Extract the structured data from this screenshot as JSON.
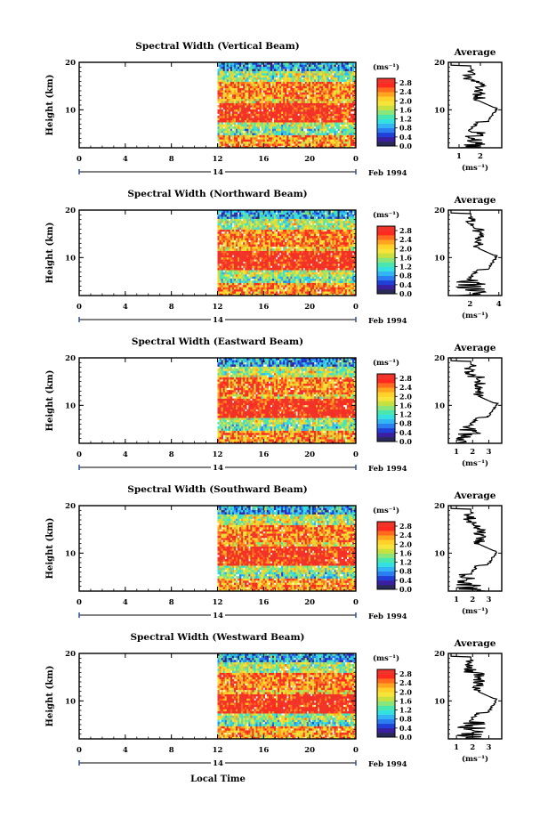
{
  "chart_data": [
    {
      "type": "heatmap",
      "title": "Spectral Width (Vertical Beam)",
      "ylabel": "Height (km)",
      "x_ticks": [
        "0",
        "4",
        "8",
        "12",
        "16",
        "20",
        "0"
      ],
      "date_label": "14",
      "month_label": "Feb 1994",
      "ylim": [
        2,
        20
      ],
      "y_ticks": [
        "20",
        "10"
      ],
      "colorbar": {
        "unit": "(ms⁻¹)",
        "labels": [
          "2.8",
          "2.4",
          "2.0",
          "1.6",
          "1.2",
          "0.8",
          "0.4",
          "0.0"
        ]
      },
      "data_start_hour": 12,
      "average": {
        "title": "Average",
        "xlabel": "(ms⁻¹)",
        "x_ticks": [
          "1",
          "2"
        ],
        "xlim": [
          0.5,
          3.0
        ],
        "ylim": [
          2,
          20
        ]
      },
      "profile_seed": 1
    },
    {
      "type": "heatmap",
      "title": "Spectral Width (Northward Beam)",
      "ylabel": "Height (km)",
      "x_ticks": [
        "0",
        "4",
        "8",
        "12",
        "16",
        "20",
        "0"
      ],
      "date_label": "14",
      "month_label": "Feb 1994",
      "ylim": [
        2,
        20
      ],
      "y_ticks": [
        "20",
        "10"
      ],
      "colorbar": {
        "unit": "(ms⁻¹)",
        "labels": [
          "2.8",
          "2.4",
          "2.0",
          "1.6",
          "1.2",
          "0.8",
          "0.4",
          "0.0"
        ]
      },
      "data_start_hour": 12,
      "average": {
        "title": "Average",
        "xlabel": "(ms⁻¹)",
        "x_ticks": [
          "2",
          "4"
        ],
        "xlim": [
          0.5,
          4.2
        ],
        "ylim": [
          2,
          20
        ]
      },
      "profile_seed": 2
    },
    {
      "type": "heatmap",
      "title": "Spectral Width (Eastward Beam)",
      "ylabel": "Height (km)",
      "x_ticks": [
        "0",
        "4",
        "8",
        "12",
        "16",
        "20",
        "0"
      ],
      "date_label": "14",
      "month_label": "Feb 1994",
      "ylim": [
        2,
        20
      ],
      "y_ticks": [
        "20",
        "10"
      ],
      "colorbar": {
        "unit": "(ms⁻¹)",
        "labels": [
          "2.8",
          "2.4",
          "2.0",
          "1.6",
          "1.2",
          "0.8",
          "0.4",
          "0.0"
        ]
      },
      "data_start_hour": 12,
      "average": {
        "title": "Average",
        "xlabel": "(ms⁻¹)",
        "x_ticks": [
          "1",
          "2",
          "3"
        ],
        "xlim": [
          0.5,
          3.8
        ],
        "ylim": [
          2,
          20
        ]
      },
      "profile_seed": 3
    },
    {
      "type": "heatmap",
      "title": "Spectral Width (Southward Beam)",
      "ylabel": "Height (km)",
      "x_ticks": [
        "0",
        "4",
        "8",
        "12",
        "16",
        "20",
        "0"
      ],
      "date_label": "14",
      "month_label": "Feb 1994",
      "ylim": [
        2,
        20
      ],
      "y_ticks": [
        "20",
        "10"
      ],
      "colorbar": {
        "unit": "(ms⁻¹)",
        "labels": [
          "2.8",
          "2.4",
          "2.0",
          "1.6",
          "1.2",
          "0.8",
          "0.4",
          "0.0"
        ]
      },
      "data_start_hour": 12,
      "average": {
        "title": "Average",
        "xlabel": "(ms⁻¹)",
        "x_ticks": [
          "1",
          "2",
          "3"
        ],
        "xlim": [
          0.5,
          3.8
        ],
        "ylim": [
          2,
          20
        ]
      },
      "profile_seed": 4
    },
    {
      "type": "heatmap",
      "title": "Spectral Width (Westward Beam)",
      "ylabel": "Height (km)",
      "x_ticks": [
        "0",
        "4",
        "8",
        "12",
        "16",
        "20",
        "0"
      ],
      "date_label": "14",
      "month_label": "Feb 1994",
      "ylim": [
        2,
        20
      ],
      "y_ticks": [
        "20",
        "10"
      ],
      "colorbar": {
        "unit": "(ms⁻¹)",
        "labels": [
          "2.8",
          "2.4",
          "2.0",
          "1.6",
          "1.2",
          "0.8",
          "0.4",
          "0.0"
        ]
      },
      "data_start_hour": 12,
      "average": {
        "title": "Average",
        "xlabel": "(ms⁻¹)",
        "x_ticks": [
          "1",
          "2",
          "3"
        ],
        "xlim": [
          0.5,
          3.8
        ],
        "ylim": [
          2,
          20
        ]
      },
      "profile_seed": 5
    }
  ],
  "xlabel": "Local Time",
  "colormap": [
    "#2a2a5a",
    "#3a1fa0",
    "#2040d8",
    "#2a7ef0",
    "#32b4f5",
    "#35e0e0",
    "#4ae6b0",
    "#8be67a",
    "#c8e040",
    "#f6e43a",
    "#ffd12a",
    "#ffa41f",
    "#ff6a1e",
    "#ff2a1f",
    "#f0342a"
  ]
}
